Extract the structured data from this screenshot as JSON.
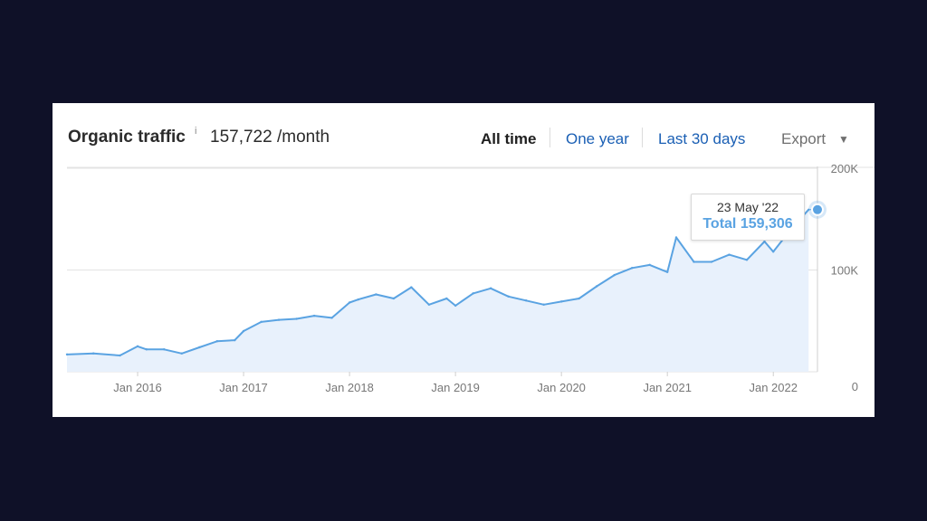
{
  "header": {
    "title": "Organic traffic",
    "info_mark": "i",
    "metric": "157,722 /month",
    "tabs": [
      "All time",
      "One year",
      "Last 30 days"
    ],
    "export_label": "Export",
    "export_caret": "▼"
  },
  "tooltip": {
    "date": "23 May '22",
    "total": "Total 159,306"
  },
  "colors": {
    "line": "#5aa3e2",
    "fill": "#e8f1fc",
    "accent_link": "#1a5fb4"
  },
  "chart_data": {
    "type": "area",
    "title": "Organic traffic",
    "x_ticks": [
      "Jan 2016",
      "Jan 2017",
      "Jan 2018",
      "Jan 2019",
      "Jan 2020",
      "Jan 2021",
      "Jan 2022"
    ],
    "y_ticks": [
      "200K",
      "100K",
      "0"
    ],
    "ylim": [
      0,
      200000
    ],
    "xlim": [
      "2015-05",
      "2022-06"
    ],
    "grid": true,
    "series": [
      {
        "x": [
          "2015-05",
          "2015-08",
          "2015-11",
          "2016-01",
          "2016-02",
          "2016-04",
          "2016-06",
          "2016-08",
          "2016-10",
          "2016-12",
          "2017-01",
          "2017-03",
          "2017-05",
          "2017-07",
          "2017-09",
          "2017-11",
          "2018-01",
          "2018-02",
          "2018-04",
          "2018-06",
          "2018-08",
          "2018-10",
          "2018-12",
          "2019-01",
          "2019-03",
          "2019-05",
          "2019-07",
          "2019-09",
          "2019-11",
          "2020-01",
          "2020-03",
          "2020-05",
          "2020-07",
          "2020-09",
          "2020-11",
          "2021-01",
          "2021-02",
          "2021-04",
          "2021-06",
          "2021-08",
          "2021-10",
          "2021-12",
          "2022-01",
          "2022-03",
          "2022-05"
        ],
        "values": [
          17000,
          18000,
          16000,
          25000,
          22000,
          22000,
          18000,
          24000,
          30000,
          31000,
          40000,
          49000,
          51000,
          52000,
          55000,
          53000,
          68000,
          71000,
          76000,
          72000,
          83000,
          66000,
          72000,
          65000,
          77000,
          82000,
          74000,
          70000,
          66000,
          69000,
          72000,
          84000,
          95000,
          102000,
          105000,
          98000,
          132000,
          108000,
          108000,
          115000,
          110000,
          128000,
          118000,
          140000,
          159306
        ]
      }
    ],
    "marker": {
      "x": "2022-05",
      "y": 159306
    }
  }
}
